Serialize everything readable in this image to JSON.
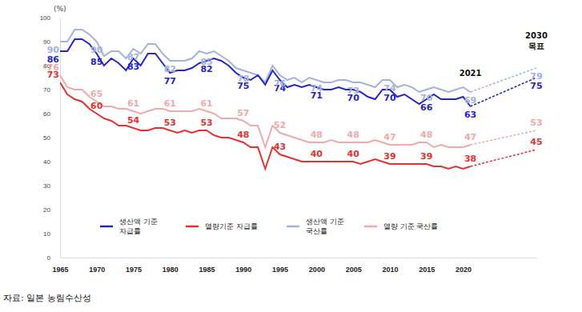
{
  "chart_data": {
    "type": "line",
    "y_label": "(%)",
    "source": "자료: 일본 농림수산성",
    "annotation": "2021",
    "annotation_x": 2021,
    "target_x": 2030,
    "target_label": "2030\n목표",
    "xlim": [
      1965,
      2030
    ],
    "xticks": [
      1965,
      1970,
      1975,
      1980,
      1985,
      1990,
      1995,
      2000,
      2005,
      2010,
      2015,
      2020
    ],
    "ylim": [
      0,
      100
    ],
    "yticks": [
      0,
      10,
      20,
      30,
      40,
      50,
      60,
      70,
      80,
      90,
      100
    ],
    "grid": false,
    "legend": "bottom",
    "data_labels": true,
    "x": [
      1965,
      1966,
      1967,
      1968,
      1969,
      1970,
      1971,
      1972,
      1973,
      1974,
      1975,
      1976,
      1977,
      1978,
      1979,
      1980,
      1981,
      1982,
      1983,
      1984,
      1985,
      1986,
      1987,
      1988,
      1989,
      1990,
      1991,
      1992,
      1993,
      1994,
      1995,
      1996,
      1997,
      1998,
      1999,
      2000,
      2001,
      2002,
      2003,
      2004,
      2005,
      2006,
      2007,
      2008,
      2009,
      2010,
      2011,
      2012,
      2013,
      2014,
      2015,
      2016,
      2017,
      2018,
      2019,
      2020,
      2021
    ],
    "series": [
      {
        "name": "생산액 기준\n자급률",
        "color": "#2424d0",
        "line_style": "solid",
        "values": [
          86,
          86,
          91,
          91,
          89,
          85,
          80,
          83,
          81,
          78,
          83,
          80,
          85,
          85,
          81,
          77,
          78,
          78,
          79,
          81,
          82,
          83,
          82,
          80,
          77,
          75,
          74,
          76,
          72,
          78,
          74,
          71,
          72,
          71,
          72,
          71,
          70,
          70,
          71,
          70,
          70,
          69,
          67,
          66,
          70,
          70,
          67,
          68,
          66,
          64,
          66,
          68,
          66,
          66,
          66,
          67,
          63
        ],
        "value_labels": [
          "86",
          null,
          null,
          null,
          null,
          "85",
          null,
          null,
          null,
          null,
          "83",
          null,
          null,
          null,
          null,
          "77",
          null,
          null,
          null,
          null,
          "82",
          null,
          null,
          null,
          null,
          "75",
          null,
          null,
          null,
          null,
          "74",
          null,
          null,
          null,
          null,
          "71",
          null,
          null,
          null,
          null,
          "70",
          null,
          null,
          null,
          null,
          "70",
          null,
          null,
          null,
          null,
          "66",
          null,
          null,
          null,
          null,
          null,
          "63"
        ],
        "target": 75
      },
      {
        "name": "열량기준 자급률",
        "color": "#e5322f",
        "line_style": "solid",
        "values": [
          73,
          68,
          66,
          65,
          62,
          60,
          58,
          57,
          55,
          55,
          54,
          53,
          53,
          54,
          54,
          53,
          52,
          53,
          52,
          53,
          53,
          51,
          50,
          50,
          49,
          48,
          46,
          46,
          37,
          46,
          43,
          42,
          41,
          40,
          40,
          40,
          40,
          40,
          40,
          40,
          40,
          39,
          40,
          41,
          40,
          39,
          39,
          39,
          39,
          39,
          39,
          38,
          38,
          37,
          38,
          37,
          38
        ],
        "value_labels": [
          "73",
          null,
          null,
          null,
          null,
          "60",
          null,
          null,
          null,
          null,
          "54",
          null,
          null,
          null,
          null,
          "53",
          null,
          null,
          null,
          null,
          "53",
          null,
          null,
          null,
          null,
          "48",
          null,
          null,
          null,
          null,
          "43",
          null,
          null,
          null,
          null,
          "40",
          null,
          null,
          null,
          null,
          "40",
          null,
          null,
          null,
          null,
          "39",
          null,
          null,
          null,
          null,
          "39",
          null,
          null,
          null,
          null,
          null,
          "38"
        ],
        "target": 45
      },
      {
        "name": "생산액 기준\n국산률",
        "color": "#a2b2e2",
        "line_style": "solid",
        "values": [
          90,
          90,
          95,
          95,
          93,
          90,
          84,
          86,
          86,
          83,
          87,
          85,
          89,
          89,
          85,
          82,
          82,
          82,
          83,
          86,
          85,
          86,
          84,
          82,
          79,
          78,
          77,
          76,
          73,
          80,
          76,
          74,
          75,
          73,
          75,
          74,
          73,
          73,
          74,
          74,
          73,
          73,
          72,
          71,
          74,
          74,
          71,
          72,
          71,
          69,
          70,
          71,
          70,
          69,
          70,
          71,
          69
        ],
        "value_labels": [
          "90",
          null,
          null,
          null,
          null,
          "90",
          null,
          null,
          null,
          null,
          "87",
          null,
          null,
          null,
          null,
          "82",
          null,
          null,
          null,
          null,
          "85",
          null,
          null,
          null,
          null,
          "78",
          null,
          null,
          null,
          null,
          "76",
          null,
          null,
          null,
          null,
          "74",
          null,
          null,
          null,
          null,
          "73",
          null,
          null,
          null,
          null,
          "74",
          null,
          null,
          null,
          null,
          "70",
          null,
          null,
          null,
          null,
          null,
          "69"
        ],
        "target": 79
      },
      {
        "name": "열량 기준 국산률",
        "color": "#f2a9a9",
        "line_style": "solid",
        "values": [
          76,
          71,
          70,
          70,
          67,
          65,
          63,
          63,
          62,
          62,
          61,
          60,
          61,
          62,
          62,
          61,
          61,
          61,
          61,
          62,
          61,
          60,
          58,
          58,
          58,
          57,
          55,
          55,
          46,
          55,
          52,
          51,
          50,
          49,
          48,
          48,
          48,
          49,
          48,
          48,
          48,
          48,
          48,
          49,
          48,
          47,
          47,
          47,
          47,
          48,
          48,
          46,
          47,
          46,
          46,
          46,
          47
        ],
        "value_labels": [
          "76",
          null,
          null,
          null,
          null,
          "65",
          null,
          null,
          null,
          null,
          "61",
          null,
          null,
          null,
          null,
          "61",
          null,
          null,
          null,
          null,
          "61",
          null,
          null,
          null,
          null,
          "57",
          null,
          null,
          null,
          null,
          "52",
          null,
          null,
          null,
          null,
          "48",
          null,
          null,
          null,
          null,
          "48",
          null,
          null,
          null,
          null,
          "47",
          null,
          null,
          null,
          null,
          "48",
          null,
          null,
          null,
          null,
          null,
          "47"
        ],
        "target": 53
      }
    ]
  }
}
